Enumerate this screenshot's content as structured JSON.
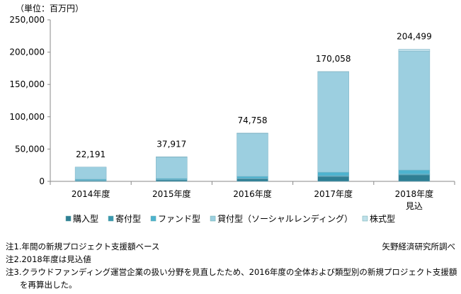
{
  "chart_data": {
    "type": "bar",
    "stacked": true,
    "unit_label": "（単位：百万円）",
    "categories": [
      "2014年度",
      "2015年度",
      "2016年度",
      "2017年度",
      "2018年度"
    ],
    "category_sublabels": [
      "",
      "",
      "",
      "",
      "見込"
    ],
    "totals": [
      22191,
      37917,
      74758,
      170058,
      204499
    ],
    "total_labels": [
      "22,191",
      "37,917",
      "74,758",
      "170,058",
      "204,499"
    ],
    "series": [
      {
        "name": "購入型",
        "color": "#2f7f94",
        "values": [
          1500,
          2500,
          4000,
          7700,
          10000
        ]
      },
      {
        "name": "寄付型",
        "color": "#3a98b0",
        "values": [
          100,
          200,
          700,
          1000,
          1200
        ]
      },
      {
        "name": "ファンド型",
        "color": "#4db3cf",
        "values": [
          1700,
          1700,
          3000,
          5500,
          6300
        ]
      },
      {
        "name": "貸付型（ソーシャルレンディング）",
        "color": "#9ccfe0",
        "values": [
          18891,
          33480,
          66458,
          155000,
          184000
        ]
      },
      {
        "name": "株式型",
        "color": "#bfe0ea",
        "values": [
          0,
          37,
          600,
          858,
          2999
        ]
      }
    ],
    "ylim": [
      0,
      250000
    ],
    "yticks": [
      0,
      50000,
      100000,
      150000,
      200000,
      250000
    ],
    "ytick_labels": [
      "0",
      "50,000",
      "100,000",
      "150,000",
      "200,000",
      "250,000"
    ],
    "grid": false,
    "legend_position": "bottom"
  },
  "notes": [
    "注1.年間の新規プロジェクト支援額ベース",
    "注2.2018年度は見込値",
    "注3.クラウドファンディング運営企業の扱い分野を見直したため、2016年度の全体および類型別の新規プロジェクト支援額",
    "を再算出した。"
  ],
  "source": "矢野経済研究所調べ"
}
